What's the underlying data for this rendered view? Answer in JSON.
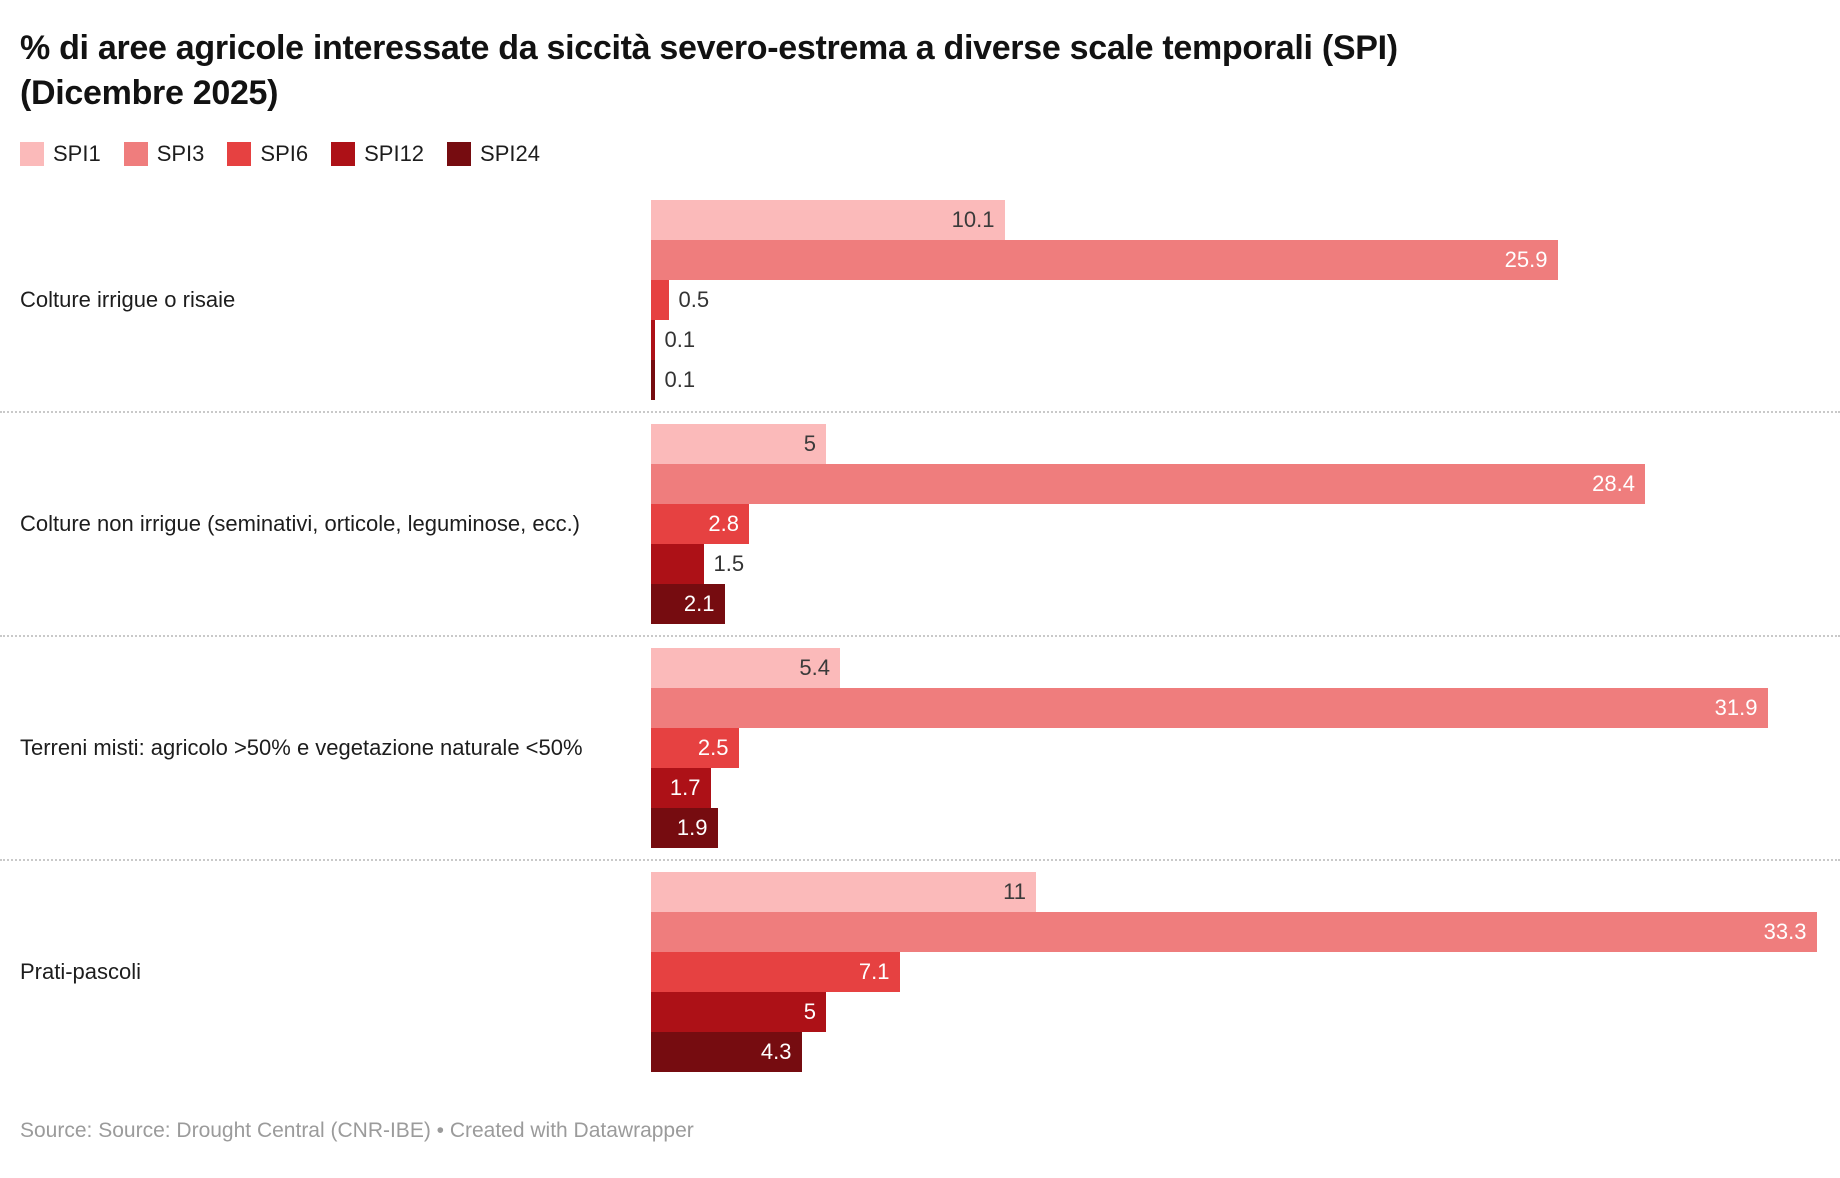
{
  "header": {
    "title_line1": "% di aree agricole interessate da siccità severo-estrema a diverse scale temporali (SPI)",
    "title_line2": "(Dicembre 2025)"
  },
  "footer": {
    "source": "Source: Source: Drought Central (CNR-IBE) • Created with Datawrapper"
  },
  "chart_data": {
    "type": "bar",
    "orientation": "horizontal",
    "title": "% di aree agricole interessate da siccità severo-estrema a diverse scale temporali (SPI) (Dicembre 2025)",
    "xlabel": "",
    "ylabel": "",
    "xlim": [
      0,
      33.3
    ],
    "grid": false,
    "legend_position": "top",
    "value_labels_shown": true,
    "categories": [
      "Colture irrigue o risaie",
      "Colture non irrigue (seminativi, orticole, leguminose, ecc.)",
      "Terreni misti: agricolo >50% e vegetazione naturale <50%",
      "Prati-pascoli"
    ],
    "series": [
      {
        "name": "SPI1",
        "color": "#fbbaba",
        "inside_label_color": "#3a3a3a",
        "values": [
          10.1,
          5,
          5.4,
          11
        ],
        "labels": [
          "10.1",
          "5",
          "5.4",
          "11"
        ]
      },
      {
        "name": "SPI3",
        "color": "#ef7d7d",
        "inside_label_color": "#ffffff",
        "values": [
          25.9,
          28.4,
          31.9,
          33.3
        ],
        "labels": [
          "25.9",
          "28.4",
          "31.9",
          "33.3"
        ]
      },
      {
        "name": "SPI6",
        "color": "#e64141",
        "inside_label_color": "#ffffff",
        "values": [
          0.5,
          2.8,
          2.5,
          7.1
        ],
        "labels": [
          "0.5",
          "2.8",
          "2.5",
          "7.1"
        ]
      },
      {
        "name": "SPI12",
        "color": "#ad1117",
        "inside_label_color": "#ffffff",
        "values": [
          0.1,
          1.5,
          1.7,
          5
        ],
        "labels": [
          "0.1",
          "1.5",
          "1.7",
          "5"
        ]
      },
      {
        "name": "SPI24",
        "color": "#760c10",
        "inside_label_color": "#ffffff",
        "values": [
          0.1,
          2.1,
          1.9,
          4.3
        ],
        "labels": [
          "0.1",
          "2.1",
          "1.9",
          "4.3"
        ]
      }
    ]
  }
}
